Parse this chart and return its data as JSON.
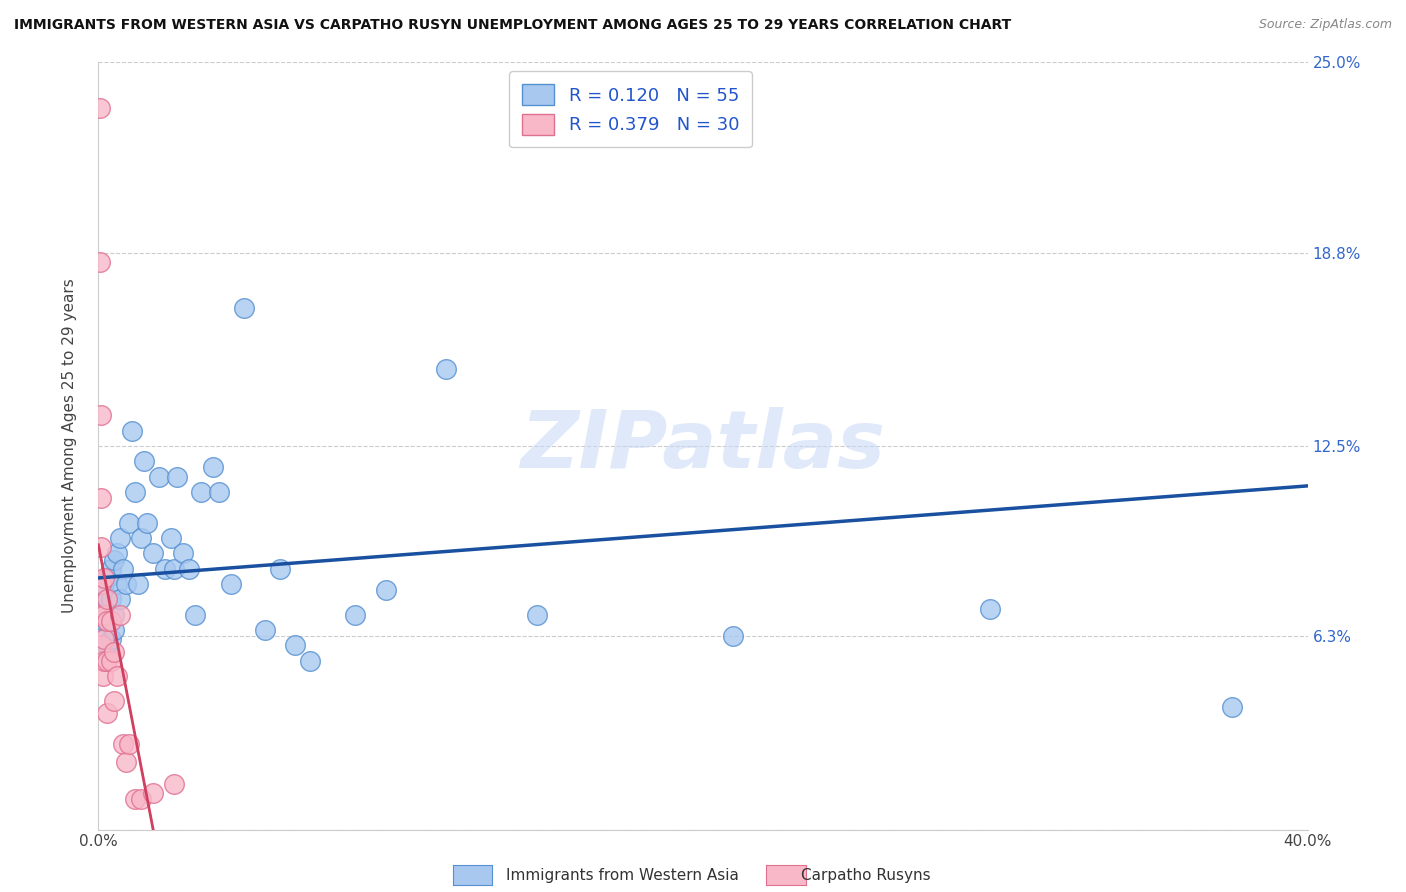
{
  "title": "IMMIGRANTS FROM WESTERN ASIA VS CARPATHO RUSYN UNEMPLOYMENT AMONG AGES 25 TO 29 YEARS CORRELATION CHART",
  "source": "Source: ZipAtlas.com",
  "ylabel": "Unemployment Among Ages 25 to 29 years",
  "xlim": [
    0,
    0.4
  ],
  "ylim": [
    0,
    0.25
  ],
  "xticks": [
    0.0,
    0.05,
    0.1,
    0.15,
    0.2,
    0.25,
    0.3,
    0.35,
    0.4
  ],
  "xticklabels": [
    "0.0%",
    "",
    "",
    "",
    "",
    "",
    "",
    "",
    "40.0%"
  ],
  "ytick_positions": [
    0.0,
    0.063,
    0.125,
    0.188,
    0.25
  ],
  "ytick_labels": [
    "",
    "6.3%",
    "12.5%",
    "18.8%",
    "25.0%"
  ],
  "blue_color": "#a8c8f0",
  "pink_color": "#f8b8c8",
  "blue_edge": "#5590d0",
  "pink_edge": "#e07090",
  "trend_blue": "#1a50a0",
  "trend_pink": "#d04060",
  "watermark": "ZIPatlas",
  "blue_scatter_x": [
    0.001,
    0.001,
    0.001,
    0.002,
    0.002,
    0.002,
    0.002,
    0.003,
    0.003,
    0.003,
    0.003,
    0.004,
    0.004,
    0.004,
    0.005,
    0.005,
    0.005,
    0.006,
    0.006,
    0.007,
    0.007,
    0.008,
    0.009,
    0.01,
    0.011,
    0.012,
    0.013,
    0.014,
    0.015,
    0.016,
    0.018,
    0.02,
    0.022,
    0.024,
    0.025,
    0.026,
    0.028,
    0.03,
    0.032,
    0.034,
    0.038,
    0.04,
    0.044,
    0.048,
    0.055,
    0.06,
    0.065,
    0.07,
    0.085,
    0.095,
    0.115,
    0.145,
    0.21,
    0.295,
    0.375
  ],
  "blue_scatter_y": [
    0.078,
    0.072,
    0.065,
    0.08,
    0.072,
    0.068,
    0.058,
    0.082,
    0.075,
    0.068,
    0.06,
    0.085,
    0.075,
    0.062,
    0.088,
    0.07,
    0.065,
    0.09,
    0.08,
    0.095,
    0.075,
    0.085,
    0.08,
    0.1,
    0.13,
    0.11,
    0.08,
    0.095,
    0.12,
    0.1,
    0.09,
    0.115,
    0.085,
    0.095,
    0.085,
    0.115,
    0.09,
    0.085,
    0.07,
    0.11,
    0.118,
    0.11,
    0.08,
    0.17,
    0.065,
    0.085,
    0.06,
    0.055,
    0.07,
    0.078,
    0.15,
    0.07,
    0.063,
    0.072,
    0.04
  ],
  "pink_scatter_x": [
    0.0005,
    0.0005,
    0.0008,
    0.001,
    0.001,
    0.001,
    0.001,
    0.001,
    0.0015,
    0.002,
    0.002,
    0.002,
    0.002,
    0.003,
    0.003,
    0.003,
    0.003,
    0.004,
    0.004,
    0.005,
    0.005,
    0.006,
    0.007,
    0.008,
    0.009,
    0.01,
    0.012,
    0.014,
    0.018,
    0.025
  ],
  "pink_scatter_y": [
    0.235,
    0.185,
    0.135,
    0.108,
    0.092,
    0.08,
    0.07,
    0.06,
    0.05,
    0.082,
    0.07,
    0.062,
    0.055,
    0.075,
    0.068,
    0.055,
    0.038,
    0.068,
    0.055,
    0.058,
    0.042,
    0.05,
    0.07,
    0.028,
    0.022,
    0.028,
    0.01,
    0.01,
    0.012,
    0.015
  ],
  "blue_trend_x0": 0.0,
  "blue_trend_y0": 0.082,
  "blue_trend_x1": 0.4,
  "blue_trend_y1": 0.112
}
